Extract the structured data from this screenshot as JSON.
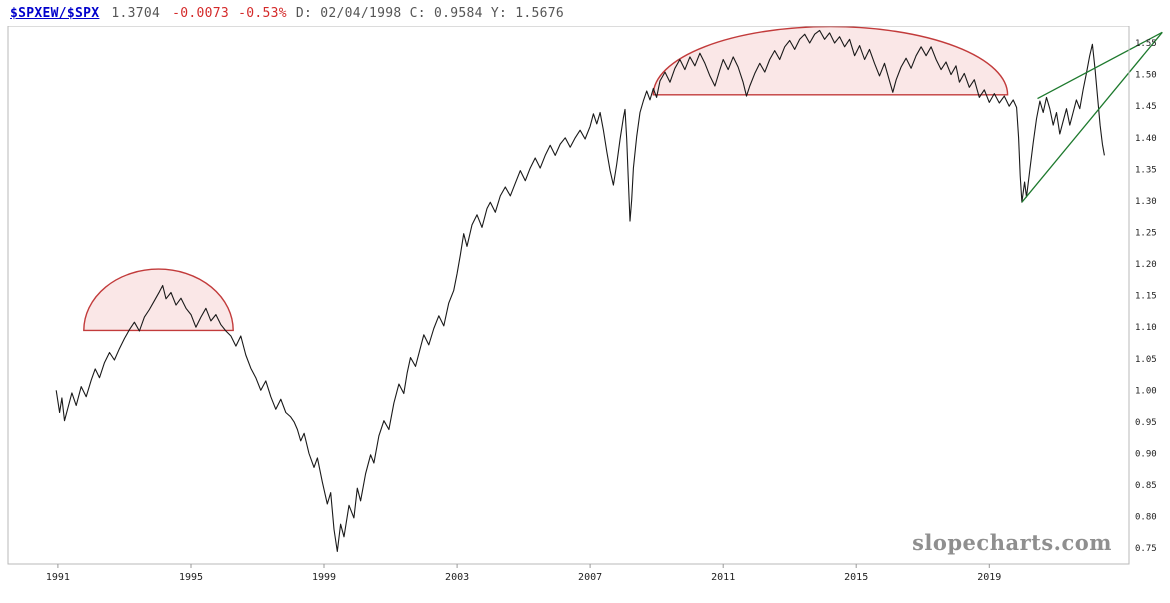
{
  "header": {
    "symbol": "$SPXEW/$SPX",
    "last": "1.3704",
    "change": "-0.0073",
    "change_pct": "-0.53%",
    "info": "D: 02/04/1998 C: 0.9584 Y: 1.5676"
  },
  "watermark": "slopecharts.com",
  "colors": {
    "symbol_blue": "#0000cc",
    "negative_red": "#d42a2a",
    "price_line": "#1a1a1a",
    "annotation_stroke": "#c23b3b",
    "annotation_fill": "#f6d7d7",
    "trendline_green": "#1e7a2e",
    "border_gray": "#b9b9b9",
    "watermark_gray": "#8f8f8f"
  },
  "chart_data": {
    "type": "line",
    "title": "$SPXEW/$SPX ratio",
    "xlabel": "",
    "ylabel": "",
    "grid": false,
    "legend": "none",
    "x_axis": {
      "range": [
        1989.5,
        2023.2
      ],
      "ticks": [
        1991,
        1995,
        1999,
        2003,
        2007,
        2011,
        2015,
        2019
      ]
    },
    "y_axis": {
      "range": [
        0.725,
        1.577
      ],
      "ticks": [
        1.55,
        1.5,
        1.45,
        1.4,
        1.35,
        1.3,
        1.25,
        1.2,
        1.15,
        1.1,
        1.05,
        1.0,
        0.95,
        0.9,
        0.85,
        0.8,
        0.75
      ]
    },
    "series": [
      {
        "name": "$SPXEW/$SPX",
        "color": "#1a1a1a",
        "points": [
          [
            1990.95,
            1.0
          ],
          [
            1991.05,
            0.965
          ],
          [
            1991.12,
            0.988
          ],
          [
            1991.2,
            0.952
          ],
          [
            1991.3,
            0.972
          ],
          [
            1991.42,
            0.996
          ],
          [
            1991.55,
            0.976
          ],
          [
            1991.7,
            1.006
          ],
          [
            1991.85,
            0.99
          ],
          [
            1992.0,
            1.016
          ],
          [
            1992.12,
            1.034
          ],
          [
            1992.25,
            1.02
          ],
          [
            1992.4,
            1.044
          ],
          [
            1992.55,
            1.06
          ],
          [
            1992.7,
            1.048
          ],
          [
            1992.85,
            1.066
          ],
          [
            1993.0,
            1.082
          ],
          [
            1993.15,
            1.096
          ],
          [
            1993.3,
            1.108
          ],
          [
            1993.45,
            1.094
          ],
          [
            1993.6,
            1.116
          ],
          [
            1993.75,
            1.128
          ],
          [
            1993.9,
            1.142
          ],
          [
            1994.05,
            1.156
          ],
          [
            1994.15,
            1.166
          ],
          [
            1994.25,
            1.145
          ],
          [
            1994.4,
            1.155
          ],
          [
            1994.55,
            1.135
          ],
          [
            1994.7,
            1.146
          ],
          [
            1994.85,
            1.13
          ],
          [
            1995.0,
            1.12
          ],
          [
            1995.15,
            1.1
          ],
          [
            1995.3,
            1.116
          ],
          [
            1995.45,
            1.13
          ],
          [
            1995.6,
            1.11
          ],
          [
            1995.75,
            1.12
          ],
          [
            1995.9,
            1.104
          ],
          [
            1996.05,
            1.094
          ],
          [
            1996.2,
            1.086
          ],
          [
            1996.35,
            1.07
          ],
          [
            1996.5,
            1.086
          ],
          [
            1996.65,
            1.056
          ],
          [
            1996.8,
            1.035
          ],
          [
            1996.95,
            1.02
          ],
          [
            1997.1,
            1.0
          ],
          [
            1997.25,
            1.015
          ],
          [
            1997.4,
            0.99
          ],
          [
            1997.55,
            0.97
          ],
          [
            1997.7,
            0.986
          ],
          [
            1997.85,
            0.965
          ],
          [
            1998.0,
            0.958
          ],
          [
            1998.1,
            0.95
          ],
          [
            1998.2,
            0.938
          ],
          [
            1998.3,
            0.92
          ],
          [
            1998.4,
            0.932
          ],
          [
            1998.55,
            0.9
          ],
          [
            1998.7,
            0.878
          ],
          [
            1998.8,
            0.893
          ],
          [
            1998.95,
            0.855
          ],
          [
            1999.1,
            0.82
          ],
          [
            1999.2,
            0.838
          ],
          [
            1999.3,
            0.78
          ],
          [
            1999.4,
            0.745
          ],
          [
            1999.5,
            0.788
          ],
          [
            1999.6,
            0.768
          ],
          [
            1999.75,
            0.818
          ],
          [
            1999.9,
            0.798
          ],
          [
            2000.0,
            0.845
          ],
          [
            2000.1,
            0.825
          ],
          [
            2000.25,
            0.868
          ],
          [
            2000.4,
            0.898
          ],
          [
            2000.5,
            0.885
          ],
          [
            2000.65,
            0.928
          ],
          [
            2000.8,
            0.952
          ],
          [
            2000.95,
            0.938
          ],
          [
            2001.1,
            0.98
          ],
          [
            2001.25,
            1.01
          ],
          [
            2001.4,
            0.995
          ],
          [
            2001.5,
            1.028
          ],
          [
            2001.6,
            1.052
          ],
          [
            2001.75,
            1.038
          ],
          [
            2001.9,
            1.068
          ],
          [
            2002.0,
            1.088
          ],
          [
            2002.15,
            1.072
          ],
          [
            2002.3,
            1.098
          ],
          [
            2002.45,
            1.118
          ],
          [
            2002.6,
            1.102
          ],
          [
            2002.75,
            1.138
          ],
          [
            2002.9,
            1.158
          ],
          [
            2003.0,
            1.185
          ],
          [
            2003.1,
            1.215
          ],
          [
            2003.2,
            1.248
          ],
          [
            2003.3,
            1.228
          ],
          [
            2003.45,
            1.262
          ],
          [
            2003.6,
            1.278
          ],
          [
            2003.75,
            1.258
          ],
          [
            2003.9,
            1.288
          ],
          [
            2004.0,
            1.298
          ],
          [
            2004.15,
            1.282
          ],
          [
            2004.3,
            1.308
          ],
          [
            2004.45,
            1.322
          ],
          [
            2004.6,
            1.308
          ],
          [
            2004.75,
            1.328
          ],
          [
            2004.9,
            1.348
          ],
          [
            2005.05,
            1.332
          ],
          [
            2005.2,
            1.352
          ],
          [
            2005.35,
            1.368
          ],
          [
            2005.5,
            1.352
          ],
          [
            2005.65,
            1.372
          ],
          [
            2005.8,
            1.388
          ],
          [
            2005.95,
            1.372
          ],
          [
            2006.1,
            1.39
          ],
          [
            2006.25,
            1.4
          ],
          [
            2006.4,
            1.385
          ],
          [
            2006.55,
            1.4
          ],
          [
            2006.7,
            1.412
          ],
          [
            2006.85,
            1.398
          ],
          [
            2007.0,
            1.418
          ],
          [
            2007.1,
            1.438
          ],
          [
            2007.2,
            1.422
          ],
          [
            2007.3,
            1.44
          ],
          [
            2007.4,
            1.412
          ],
          [
            2007.5,
            1.378
          ],
          [
            2007.6,
            1.348
          ],
          [
            2007.7,
            1.325
          ],
          [
            2007.8,
            1.358
          ],
          [
            2007.9,
            1.398
          ],
          [
            2008.0,
            1.432
          ],
          [
            2008.05,
            1.445
          ],
          [
            2008.1,
            1.398
          ],
          [
            2008.15,
            1.33
          ],
          [
            2008.2,
            1.268
          ],
          [
            2008.25,
            1.302
          ],
          [
            2008.3,
            1.352
          ],
          [
            2008.4,
            1.402
          ],
          [
            2008.5,
            1.44
          ],
          [
            2008.6,
            1.458
          ],
          [
            2008.7,
            1.474
          ],
          [
            2008.8,
            1.46
          ],
          [
            2008.9,
            1.478
          ],
          [
            2009.0,
            1.464
          ],
          [
            2009.1,
            1.49
          ],
          [
            2009.25,
            1.504
          ],
          [
            2009.4,
            1.488
          ],
          [
            2009.55,
            1.51
          ],
          [
            2009.7,
            1.524
          ],
          [
            2009.85,
            1.508
          ],
          [
            2010.0,
            1.528
          ],
          [
            2010.15,
            1.514
          ],
          [
            2010.3,
            1.534
          ],
          [
            2010.45,
            1.518
          ],
          [
            2010.6,
            1.498
          ],
          [
            2010.75,
            1.482
          ],
          [
            2010.9,
            1.508
          ],
          [
            2011.0,
            1.524
          ],
          [
            2011.15,
            1.508
          ],
          [
            2011.3,
            1.528
          ],
          [
            2011.45,
            1.512
          ],
          [
            2011.6,
            1.488
          ],
          [
            2011.7,
            1.466
          ],
          [
            2011.8,
            1.482
          ],
          [
            2011.95,
            1.502
          ],
          [
            2012.1,
            1.518
          ],
          [
            2012.25,
            1.504
          ],
          [
            2012.4,
            1.524
          ],
          [
            2012.55,
            1.538
          ],
          [
            2012.7,
            1.524
          ],
          [
            2012.85,
            1.544
          ],
          [
            2013.0,
            1.554
          ],
          [
            2013.15,
            1.54
          ],
          [
            2013.3,
            1.556
          ],
          [
            2013.45,
            1.564
          ],
          [
            2013.6,
            1.55
          ],
          [
            2013.75,
            1.564
          ],
          [
            2013.9,
            1.57
          ],
          [
            2014.05,
            1.556
          ],
          [
            2014.2,
            1.566
          ],
          [
            2014.35,
            1.55
          ],
          [
            2014.5,
            1.56
          ],
          [
            2014.65,
            1.544
          ],
          [
            2014.8,
            1.556
          ],
          [
            2014.95,
            1.53
          ],
          [
            2015.1,
            1.546
          ],
          [
            2015.25,
            1.524
          ],
          [
            2015.4,
            1.54
          ],
          [
            2015.55,
            1.518
          ],
          [
            2015.7,
            1.498
          ],
          [
            2015.85,
            1.518
          ],
          [
            2016.0,
            1.49
          ],
          [
            2016.1,
            1.472
          ],
          [
            2016.2,
            1.492
          ],
          [
            2016.35,
            1.512
          ],
          [
            2016.5,
            1.526
          ],
          [
            2016.65,
            1.51
          ],
          [
            2016.8,
            1.53
          ],
          [
            2016.95,
            1.544
          ],
          [
            2017.1,
            1.53
          ],
          [
            2017.25,
            1.544
          ],
          [
            2017.4,
            1.524
          ],
          [
            2017.55,
            1.508
          ],
          [
            2017.7,
            1.52
          ],
          [
            2017.85,
            1.5
          ],
          [
            2018.0,
            1.514
          ],
          [
            2018.1,
            1.488
          ],
          [
            2018.25,
            1.502
          ],
          [
            2018.4,
            1.48
          ],
          [
            2018.55,
            1.492
          ],
          [
            2018.7,
            1.464
          ],
          [
            2018.85,
            1.476
          ],
          [
            2019.0,
            1.456
          ],
          [
            2019.15,
            1.47
          ],
          [
            2019.3,
            1.455
          ],
          [
            2019.45,
            1.466
          ],
          [
            2019.6,
            1.45
          ],
          [
            2019.72,
            1.46
          ],
          [
            2019.82,
            1.448
          ],
          [
            2019.88,
            1.4
          ],
          [
            2019.93,
            1.34
          ],
          [
            2019.98,
            1.298
          ],
          [
            2020.06,
            1.33
          ],
          [
            2020.12,
            1.306
          ],
          [
            2020.22,
            1.35
          ],
          [
            2020.32,
            1.392
          ],
          [
            2020.42,
            1.43
          ],
          [
            2020.52,
            1.458
          ],
          [
            2020.62,
            1.44
          ],
          [
            2020.72,
            1.464
          ],
          [
            2020.82,
            1.446
          ],
          [
            2020.92,
            1.42
          ],
          [
            2021.02,
            1.44
          ],
          [
            2021.12,
            1.406
          ],
          [
            2021.22,
            1.426
          ],
          [
            2021.32,
            1.446
          ],
          [
            2021.42,
            1.42
          ],
          [
            2021.52,
            1.44
          ],
          [
            2021.62,
            1.46
          ],
          [
            2021.72,
            1.446
          ],
          [
            2021.82,
            1.476
          ],
          [
            2021.92,
            1.502
          ],
          [
            2022.02,
            1.53
          ],
          [
            2022.1,
            1.548
          ],
          [
            2022.18,
            1.508
          ],
          [
            2022.26,
            1.462
          ],
          [
            2022.33,
            1.42
          ],
          [
            2022.4,
            1.39
          ],
          [
            2022.46,
            1.372
          ]
        ]
      }
    ],
    "annotations": {
      "domes": [
        {
          "name": "dome-1992-1996",
          "x1": 1991.78,
          "x2": 1996.27,
          "base": 1.095,
          "top": 1.192,
          "fill": "#f6d7d7",
          "stroke": "#c23b3b"
        },
        {
          "name": "dome-2009-2019",
          "x1": 2008.9,
          "x2": 2019.55,
          "base": 1.468,
          "top": 1.576,
          "fill": "#f6d7d7",
          "stroke": "#c23b3b"
        }
      ],
      "trendlines": [
        {
          "name": "wedge-lower-trendline",
          "x1": 2019.98,
          "y1": 1.298,
          "x2": 2024.2,
          "y2": 1.567,
          "color": "#1e7a2e"
        },
        {
          "name": "wedge-upper-trendline",
          "x1": 2020.45,
          "y1": 1.462,
          "x2": 2024.2,
          "y2": 1.567,
          "color": "#1e7a2e"
        }
      ]
    }
  }
}
